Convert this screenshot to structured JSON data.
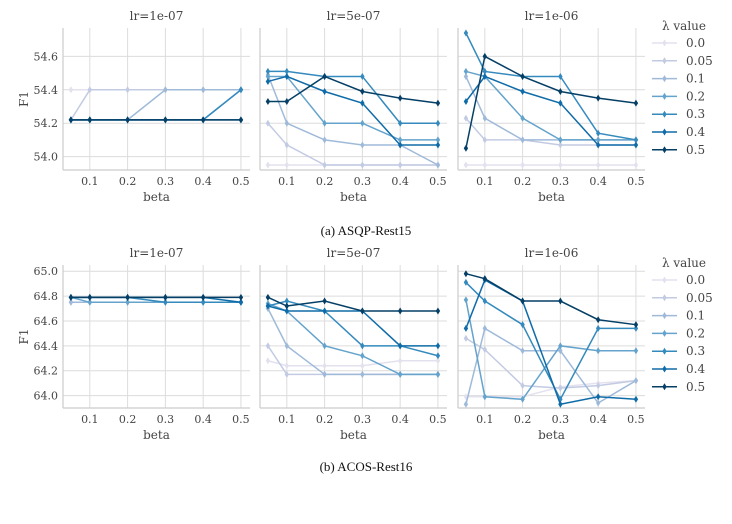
{
  "legend": {
    "title": "λ value",
    "labels": [
      "0.0",
      "0.05",
      "0.1",
      "0.2",
      "0.3",
      "0.4",
      "0.5"
    ],
    "colors": [
      "#e4e1ef",
      "#c3cbe3",
      "#9fbad9",
      "#64a3cc",
      "#358abd",
      "#106ca8",
      "#053f66"
    ]
  },
  "captions": [
    "(a) ASQP-Rest15",
    "(b) ACOS-Rest16"
  ],
  "chart_data": [
    {
      "type": "line",
      "title": "lr=1e-07",
      "xlabel": "beta",
      "ylabel": "F1",
      "row": 0,
      "x": [
        0.05,
        0.1,
        0.2,
        0.3,
        0.4,
        0.5
      ],
      "xticks": [
        "0.1",
        "0.2",
        "0.3",
        "0.4",
        "0.5"
      ],
      "yticks": [
        "54.0",
        "54.2",
        "54.4",
        "54.6"
      ],
      "ylim": [
        53.92,
        54.77
      ],
      "grid": true,
      "series": [
        {
          "name": "0.0",
          "values": [
            54.4,
            54.4,
            54.4,
            54.4,
            54.4,
            54.4
          ]
        },
        {
          "name": "0.05",
          "values": [
            54.22,
            54.4,
            54.4,
            54.4,
            54.4,
            54.4
          ]
        },
        {
          "name": "0.1",
          "values": [
            54.22,
            54.22,
            54.22,
            54.4,
            54.4,
            54.4
          ]
        },
        {
          "name": "0.2",
          "values": [
            54.22,
            54.22,
            54.22,
            54.22,
            54.22,
            54.4
          ]
        },
        {
          "name": "0.3",
          "values": [
            54.22,
            54.22,
            54.22,
            54.22,
            54.22,
            54.4
          ]
        },
        {
          "name": "0.4",
          "values": [
            54.22,
            54.22,
            54.22,
            54.22,
            54.22,
            54.22
          ]
        },
        {
          "name": "0.5",
          "values": [
            54.22,
            54.22,
            54.22,
            54.22,
            54.22,
            54.22
          ]
        }
      ]
    },
    {
      "type": "line",
      "title": "lr=5e-07",
      "xlabel": "beta",
      "ylabel": "",
      "row": 0,
      "x": [
        0.05,
        0.1,
        0.2,
        0.3,
        0.4,
        0.5
      ],
      "xticks": [
        "0.1",
        "0.2",
        "0.3",
        "0.4",
        "0.5"
      ],
      "yticks": [],
      "ylim": [
        53.92,
        54.77
      ],
      "grid": true,
      "series": [
        {
          "name": "0.0",
          "values": [
            53.95,
            53.95,
            53.95,
            53.95,
            53.95,
            53.95
          ]
        },
        {
          "name": "0.05",
          "values": [
            54.2,
            54.07,
            53.95,
            53.95,
            53.95,
            53.95
          ]
        },
        {
          "name": "0.1",
          "values": [
            54.49,
            54.2,
            54.1,
            54.07,
            54.07,
            53.95
          ]
        },
        {
          "name": "0.2",
          "values": [
            54.48,
            54.48,
            54.2,
            54.2,
            54.1,
            54.1
          ]
        },
        {
          "name": "0.3",
          "values": [
            54.51,
            54.51,
            54.48,
            54.48,
            54.2,
            54.2
          ]
        },
        {
          "name": "0.4",
          "values": [
            54.45,
            54.48,
            54.39,
            54.32,
            54.07,
            54.07
          ]
        },
        {
          "name": "0.5",
          "values": [
            54.33,
            54.33,
            54.48,
            54.39,
            54.35,
            54.32
          ]
        }
      ]
    },
    {
      "type": "line",
      "title": "lr=1e-06",
      "xlabel": "beta",
      "ylabel": "",
      "row": 0,
      "x": [
        0.05,
        0.1,
        0.2,
        0.3,
        0.4,
        0.5
      ],
      "xticks": [
        "0.1",
        "0.2",
        "0.3",
        "0.4",
        "0.5"
      ],
      "yticks": [],
      "ylim": [
        53.92,
        54.77
      ],
      "grid": true,
      "series": [
        {
          "name": "0.0",
          "values": [
            53.95,
            53.95,
            53.95,
            53.95,
            53.95,
            53.95
          ]
        },
        {
          "name": "0.05",
          "values": [
            54.23,
            54.1,
            54.1,
            54.07,
            54.07,
            54.07
          ]
        },
        {
          "name": "0.1",
          "values": [
            54.48,
            54.23,
            54.1,
            54.1,
            54.1,
            54.1
          ]
        },
        {
          "name": "0.2",
          "values": [
            54.51,
            54.48,
            54.23,
            54.1,
            54.1,
            54.1
          ]
        },
        {
          "name": "0.3",
          "values": [
            54.74,
            54.51,
            54.48,
            54.48,
            54.14,
            54.1
          ]
        },
        {
          "name": "0.4",
          "values": [
            54.33,
            54.48,
            54.39,
            54.32,
            54.07,
            54.07
          ]
        },
        {
          "name": "0.5",
          "values": [
            54.05,
            54.6,
            54.48,
            54.39,
            54.35,
            54.32
          ]
        }
      ]
    },
    {
      "type": "line",
      "title": "lr=1e-07",
      "xlabel": "beta",
      "ylabel": "F1",
      "row": 1,
      "x": [
        0.05,
        0.1,
        0.2,
        0.3,
        0.4,
        0.5
      ],
      "xticks": [
        "0.1",
        "0.2",
        "0.3",
        "0.4",
        "0.5"
      ],
      "yticks": [
        "64.0",
        "64.2",
        "64.4",
        "64.6",
        "64.8",
        "65.0"
      ],
      "ylim": [
        63.9,
        65.05
      ],
      "grid": true,
      "series": [
        {
          "name": "0.0",
          "values": [
            64.75,
            64.75,
            64.75,
            64.75,
            64.75,
            64.75
          ]
        },
        {
          "name": "0.05",
          "values": [
            64.75,
            64.75,
            64.75,
            64.75,
            64.75,
            64.75
          ]
        },
        {
          "name": "0.1",
          "values": [
            64.75,
            64.75,
            64.75,
            64.75,
            64.75,
            64.75
          ]
        },
        {
          "name": "0.2",
          "values": [
            64.79,
            64.75,
            64.75,
            64.75,
            64.75,
            64.75
          ]
        },
        {
          "name": "0.3",
          "values": [
            64.79,
            64.79,
            64.79,
            64.75,
            64.75,
            64.75
          ]
        },
        {
          "name": "0.4",
          "values": [
            64.79,
            64.79,
            64.79,
            64.79,
            64.79,
            64.75
          ]
        },
        {
          "name": "0.5",
          "values": [
            64.79,
            64.79,
            64.79,
            64.79,
            64.79,
            64.79
          ]
        }
      ]
    },
    {
      "type": "line",
      "title": "lr=5e-07",
      "xlabel": "beta",
      "ylabel": "",
      "row": 1,
      "x": [
        0.05,
        0.1,
        0.2,
        0.3,
        0.4,
        0.5
      ],
      "xticks": [
        "0.1",
        "0.2",
        "0.3",
        "0.4",
        "0.5"
      ],
      "yticks": [],
      "ylim": [
        63.9,
        65.05
      ],
      "grid": true,
      "series": [
        {
          "name": "0.0",
          "values": [
            64.28,
            64.24,
            64.24,
            64.24,
            64.28,
            64.28
          ]
        },
        {
          "name": "0.05",
          "values": [
            64.4,
            64.17,
            64.17,
            64.17,
            64.17,
            64.17
          ]
        },
        {
          "name": "0.1",
          "values": [
            64.7,
            64.4,
            64.17,
            64.17,
            64.17,
            64.17
          ]
        },
        {
          "name": "0.2",
          "values": [
            64.74,
            64.68,
            64.4,
            64.32,
            64.17,
            64.17
          ]
        },
        {
          "name": "0.3",
          "values": [
            64.72,
            64.76,
            64.68,
            64.4,
            64.4,
            64.32
          ]
        },
        {
          "name": "0.4",
          "values": [
            64.72,
            64.68,
            64.68,
            64.68,
            64.4,
            64.4
          ]
        },
        {
          "name": "0.5",
          "values": [
            64.79,
            64.72,
            64.76,
            64.68,
            64.68,
            64.68
          ]
        }
      ]
    },
    {
      "type": "line",
      "title": "lr=1e-06",
      "xlabel": "beta",
      "ylabel": "",
      "row": 1,
      "x": [
        0.05,
        0.1,
        0.2,
        0.3,
        0.4,
        0.5
      ],
      "xticks": [
        "0.1",
        "0.2",
        "0.3",
        "0.4",
        "0.5"
      ],
      "yticks": [],
      "ylim": [
        63.9,
        65.05
      ],
      "grid": true,
      "series": [
        {
          "name": "0.0",
          "values": [
            63.99,
            63.99,
            63.99,
            64.07,
            64.1,
            64.12
          ]
        },
        {
          "name": "0.05",
          "values": [
            64.46,
            64.37,
            64.08,
            64.06,
            64.08,
            64.12
          ]
        },
        {
          "name": "0.1",
          "values": [
            63.93,
            64.54,
            64.36,
            64.36,
            63.94,
            64.12
          ]
        },
        {
          "name": "0.2",
          "values": [
            64.77,
            63.99,
            63.97,
            64.4,
            64.36,
            64.36
          ]
        },
        {
          "name": "0.3",
          "values": [
            64.91,
            64.76,
            64.57,
            63.97,
            64.54,
            64.54
          ]
        },
        {
          "name": "0.4",
          "values": [
            64.54,
            64.93,
            64.76,
            63.93,
            63.99,
            63.97
          ]
        },
        {
          "name": "0.5",
          "values": [
            64.98,
            64.94,
            64.76,
            64.76,
            64.61,
            64.57
          ]
        }
      ]
    }
  ]
}
